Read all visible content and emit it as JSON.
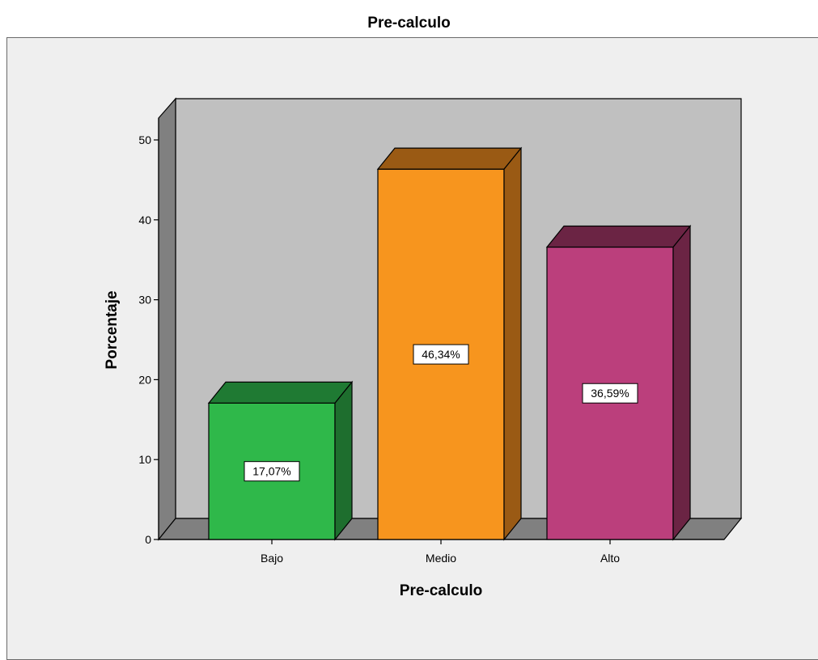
{
  "chart_data": {
    "type": "bar",
    "title": "Pre-calculo",
    "xlabel": "Pre-calculo",
    "ylabel": "Porcentaje",
    "categories": [
      "Bajo",
      "Medio",
      "Alto"
    ],
    "values": [
      17.07,
      46.34,
      36.59
    ],
    "data_labels": [
      "17,07%",
      "46,34%",
      "36,59%"
    ],
    "y_ticks": [
      0,
      10,
      20,
      30,
      40,
      50
    ],
    "ylim": [
      0,
      55
    ],
    "grid": false,
    "legend": "none",
    "style": "3d",
    "colors": {
      "Bajo": {
        "front": "#2fb84a",
        "top": "#1f7a33",
        "side": "#1e6e2e"
      },
      "Medio": {
        "front": "#f7951e",
        "top": "#9a5a14",
        "side": "#9a5a14"
      },
      "Alto": {
        "front": "#bb3f7c",
        "top": "#6b2444",
        "side": "#6b2444"
      },
      "wall": "#c0c0c0",
      "floor": "#808080",
      "side_wall": "#808080",
      "frame": "#efefef"
    }
  }
}
